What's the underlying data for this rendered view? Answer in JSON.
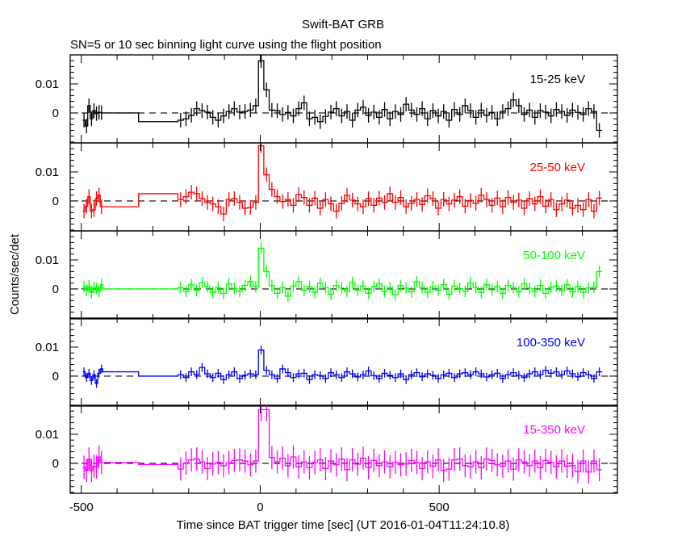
{
  "chart_data": {
    "type": "line",
    "title": "Swift-BAT GRB",
    "subtitle": "SN=5 or 10 sec binning light curve using the flight position",
    "xlabel": "Time since BAT trigger time [sec] (UT 2016-01-04T11:24:10.8)",
    "ylabel": "Counts/sec/det",
    "xlim": [
      -531,
      998
    ],
    "ylim": [
      -0.0103,
      0.02
    ],
    "x_ticks": [
      -500,
      0,
      500
    ],
    "y_ticks": [
      0,
      0.01
    ],
    "y_tick_labels": [
      "0",
      "0.01"
    ],
    "x_tick_labels": [
      "-500",
      "0",
      "500"
    ],
    "pre_bins": {
      "start": -496,
      "width": 7
    },
    "flat_segments": [
      [
        -440,
        -340
      ],
      [
        -340,
        -230
      ]
    ],
    "main_bins": {
      "start": -230,
      "width": 15
    },
    "series": [
      {
        "name": "15-25 keV",
        "color": "#000000",
        "err": 0.0025,
        "pre": [
          -0.0025,
          -0.0045,
          0.0025,
          -0.002,
          0.0008,
          -0.0002,
          0.0002,
          0.0001
        ],
        "flat": [
          0.0,
          -0.003
        ],
        "values": [
          -0.0025,
          -0.002,
          -0.0008,
          0.0015,
          0.0008,
          0.0003,
          -0.0015,
          -0.0025,
          -0.001,
          0.0005,
          0.0015,
          0.0003,
          0.0005,
          0.001,
          0.0025,
          0.018,
          0.008,
          0.001,
          0.0008,
          -0.0005,
          0.0002,
          -0.001,
          0.0015,
          0.0035,
          -0.002,
          -0.0015,
          -0.003,
          -0.0012,
          0.0003,
          0.0015,
          -0.001,
          0.0005,
          -0.0025,
          0.001,
          0.002,
          -0.0008,
          0.0003,
          -0.0015,
          0.0012,
          -0.002,
          0.0005,
          -0.0005,
          0.003,
          0.001,
          -0.0005,
          0.0015,
          -0.002,
          0.0008,
          -0.001,
          0.0005,
          -0.0025,
          0.0012,
          -0.0005,
          0.0025,
          0.0008,
          -0.0015,
          0.001,
          -0.0008,
          0.0002,
          -0.002,
          0.0005,
          0.0015,
          0.0045,
          0.0025,
          -0.0005,
          0.001,
          -0.0015,
          0.0008,
          0.0003,
          -0.001,
          0.0012,
          0.0005,
          -0.0008,
          0.001,
          0.0002,
          -0.0005,
          0.0015,
          0.0005,
          -0.006
        ]
      },
      {
        "name": "25-50 keV",
        "color": "#ff0000",
        "err": 0.0025,
        "pre": [
          -0.0035,
          -0.0018,
          0.0015,
          -0.0035,
          -0.003,
          0.0008,
          0.002,
          -0.002
        ],
        "flat": [
          -0.002,
          0.0025
        ],
        "values": [
          0.0005,
          0.0015,
          0.003,
          0.0025,
          0.0008,
          -0.0005,
          -0.001,
          -0.002,
          -0.0045,
          0.0005,
          0.0008,
          -0.0005,
          -0.0025,
          -0.0022,
          -0.0005,
          0.019,
          0.009,
          0.004,
          0.0015,
          -0.0002,
          0.0005,
          -0.0015,
          0.0022,
          0.0012,
          -0.0015,
          0.001,
          -0.0025,
          0.0005,
          -0.001,
          -0.0035,
          -0.0008,
          0.002,
          0.0003,
          -0.001,
          -0.002,
          0.0008,
          -0.0015,
          0.001,
          -0.0005,
          0.0025,
          -0.0005,
          0.0012,
          -0.002,
          -0.0008,
          0.0005,
          -0.0012,
          0.0018,
          0.0008,
          -0.0025,
          0.0005,
          -0.001,
          0.0003,
          0.0015,
          -0.0018,
          0.0002,
          -0.0008,
          0.002,
          0.0005,
          -0.0015,
          0.001,
          -0.002,
          0.0012,
          -0.0005,
          0.0003,
          -0.0025,
          0.0008,
          -0.001,
          0.0015,
          -0.0018,
          0.0005,
          -0.003,
          -0.001,
          0.0003,
          -0.0025,
          -0.0015,
          -0.003,
          0.0005,
          -0.0035,
          0.001
        ]
      },
      {
        "name": "50-100 keV",
        "color": "#00ff00",
        "err": 0.002,
        "pre": [
          0.0008,
          -0.0005,
          0.001,
          -0.0012,
          0.0005,
          0.0002,
          -0.0008,
          0.0015
        ],
        "flat": [
          0.0,
          0.0
        ],
        "values": [
          0.0005,
          -0.0008,
          0.0015,
          -0.0005,
          0.0022,
          0.0008,
          -0.0012,
          0.0005,
          -0.0015,
          0.0018,
          0.0002,
          -0.0008,
          0.0012,
          0.0025,
          0.0008,
          0.014,
          0.006,
          0.0012,
          -0.0015,
          0.0005,
          -0.0025,
          0.001,
          0.0025,
          -0.0005,
          0.0008,
          -0.0012,
          0.002,
          0.0005,
          -0.0018,
          0.0012,
          0.0003,
          -0.0008,
          0.0022,
          -0.0005,
          0.001,
          -0.0015,
          0.0008,
          0.0018,
          -0.0008,
          0.0005,
          -0.002,
          0.0012,
          0.0003,
          -0.001,
          0.0025,
          0.0005,
          -0.0012,
          0.0008,
          -0.0005,
          0.0015,
          -0.0018,
          0.001,
          0.0002,
          -0.0008,
          0.0022,
          0.0005,
          -0.0012,
          0.0015,
          -0.0003,
          0.0008,
          -0.0015,
          0.0012,
          0.0005,
          -0.001,
          0.0018,
          0.0003,
          -0.0008,
          0.0012,
          -0.0015,
          0.0006,
          0.001,
          -0.0005,
          0.0015,
          -0.001,
          0.0008,
          -0.0012,
          0.0004,
          0.0006,
          0.006
        ]
      },
      {
        "name": "100-350 keV",
        "color": "#0000ff",
        "err": 0.0015,
        "pre": [
          0.0015,
          -0.0005,
          0.001,
          -0.0015,
          0.0005,
          -0.0025,
          0.001,
          0.0025
        ],
        "flat": [
          0.0015,
          0.0
        ],
        "values": [
          0.0005,
          -0.0005,
          0.0015,
          0.0005,
          0.003,
          0.0008,
          -0.0005,
          0.001,
          -0.0012,
          0.0005,
          0.0015,
          -0.0008,
          0.0003,
          0.0008,
          0.0005,
          0.009,
          0.002,
          0.0005,
          -0.0008,
          0.0025,
          0.0012,
          -0.0005,
          0.0008,
          0.001,
          -0.0012,
          0.0005,
          0.0002,
          -0.0008,
          0.0012,
          0.0005,
          -0.0005,
          0.0015,
          0.0008,
          -0.0003,
          0.0005,
          0.0018,
          0.0002,
          -0.0008,
          0.001,
          0.0003,
          -0.0005,
          0.0008,
          -0.0012,
          0.0005,
          0.0012,
          -0.0002,
          0.0008,
          0.0003,
          -0.0008,
          0.0005,
          0.001,
          -0.0005,
          0.0008,
          0.0012,
          0.0005,
          0.0015,
          0.0008,
          -0.0003,
          0.0005,
          0.001,
          -0.0008,
          0.0005,
          0.0012,
          0.0003,
          -0.0005,
          0.0008,
          0.0015,
          0.0005,
          0.002,
          0.001,
          0.0015,
          0.0005,
          0.0018,
          0.0008,
          -0.0002,
          0.0012,
          0.0005,
          -0.0008,
          0.0015
        ]
      },
      {
        "name": "15-350 keV",
        "color": "#ff00ff",
        "err": 0.004,
        "pre": [
          -0.0013,
          -0.0025,
          0.0015,
          -0.0025,
          -0.001,
          -0.0012,
          0.0022,
          0.0003
        ],
        "flat": [
          0.0003,
          -0.0004
        ],
        "values": [
          -0.002,
          0.0001,
          0.0012,
          0.0015,
          0.0005,
          -0.0018,
          -0.0002,
          0.0003,
          -0.0008,
          0.0002,
          0.001,
          0.0012,
          0.0008,
          -0.0005,
          0.0008,
          0.0185,
          0.0185,
          0.002,
          0.0005,
          0.0018,
          -0.0008,
          0.0022,
          -0.0012,
          0.0005,
          -0.0015,
          0.0003,
          0.0012,
          -0.0018,
          0.0008,
          -0.0005,
          0.0015,
          -0.0022,
          0.0012,
          -0.0003,
          0.0018,
          -0.0015,
          0.001,
          -0.0008,
          0.0005,
          -0.0012,
          0.0003,
          -0.0005,
          -0.0002,
          0.001,
          0.0003,
          -0.0018,
          0.0005,
          -0.001,
          0.0012,
          -0.0025,
          -0.002,
          0.0012,
          0.0015,
          -0.0008,
          -0.0012,
          0.0005,
          -0.0015,
          0.0015,
          0.001,
          -0.0005,
          -0.001,
          0.0008,
          -0.002,
          0.0012,
          0.0005,
          -0.0008,
          0.0008,
          -0.0015,
          0.001,
          0.0003,
          -0.0012,
          0.0008,
          -0.001,
          -0.0008,
          -0.0028,
          0.0008,
          -0.003,
          0.0008,
          -0.0022
        ]
      }
    ]
  }
}
